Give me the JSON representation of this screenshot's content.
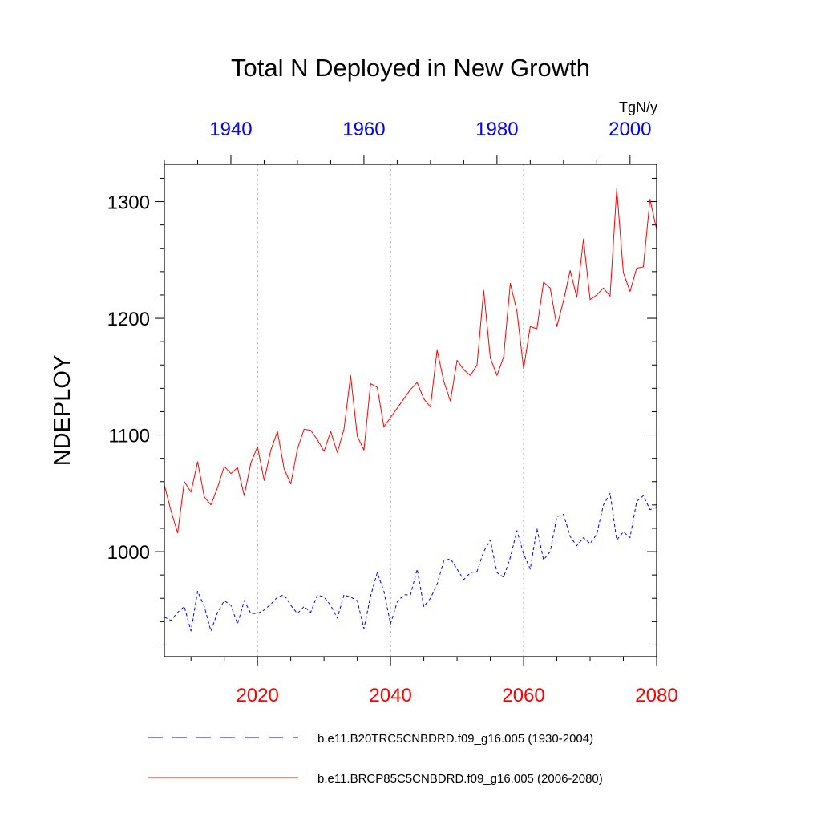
{
  "chart_data": {
    "type": "line",
    "title": "Total N Deployed in New Growth",
    "units": "TgN/y",
    "ylabel": "NDEPLOY",
    "ylim": [
      910,
      1332
    ],
    "yticks": [
      1000,
      1100,
      1200,
      1300
    ],
    "y_tick_labels": [
      "1000",
      "1100",
      "1200",
      "1300"
    ],
    "bottom_axis": {
      "range": [
        2006,
        2080
      ],
      "ticks": [
        2020,
        2040,
        2060,
        2080
      ],
      "tick_labels": [
        "2020",
        "2040",
        "2060",
        "2080"
      ],
      "color": "#ff0000"
    },
    "top_axis": {
      "range": [
        1930,
        2004
      ],
      "ticks": [
        1940,
        1960,
        1980,
        2000
      ],
      "tick_labels": [
        "1940",
        "1960",
        "1980",
        "2000"
      ],
      "color": "#0000ff"
    },
    "gridlines_x": [
      2020,
      2040,
      2060
    ],
    "series": [
      {
        "name": "b.e11.B20TRC5CNBDRD.f09_g16.005 (1930-2004)",
        "axis": "top",
        "color": "#0000ff",
        "style": "dashed",
        "x": [
          1930,
          1931,
          1932,
          1933,
          1934,
          1935,
          1936,
          1937,
          1938,
          1939,
          1940,
          1941,
          1942,
          1943,
          1944,
          1945,
          1946,
          1947,
          1948,
          1949,
          1950,
          1951,
          1952,
          1953,
          1954,
          1955,
          1956,
          1957,
          1958,
          1959,
          1960,
          1961,
          1962,
          1963,
          1964,
          1965,
          1966,
          1967,
          1968,
          1969,
          1970,
          1971,
          1972,
          1973,
          1974,
          1975,
          1976,
          1977,
          1978,
          1979,
          1980,
          1981,
          1982,
          1983,
          1984,
          1985,
          1986,
          1987,
          1988,
          1989,
          1990,
          1991,
          1992,
          1993,
          1994,
          1995,
          1996,
          1997,
          1998,
          1999,
          2000,
          2001,
          2002,
          2003,
          2004
        ],
        "values": [
          944,
          941,
          948,
          953,
          932,
          966,
          953,
          932,
          948,
          958,
          954,
          938,
          958,
          947,
          947,
          950,
          955,
          961,
          963,
          954,
          947,
          953,
          948,
          963,
          961,
          954,
          943,
          963,
          961,
          958,
          934,
          962,
          982,
          966,
          938,
          957,
          963,
          963,
          985,
          953,
          960,
          972,
          992,
          994,
          985,
          976,
          982,
          983,
          1000,
          1010,
          982,
          978,
          995,
          1018,
          998,
          985,
          1020,
          993,
          1000,
          1030,
          1032,
          1013,
          1005,
          1012,
          1007,
          1015,
          1040,
          1050,
          1010,
          1017,
          1012,
          1043,
          1048,
          1036,
          1038
        ]
      },
      {
        "name": "b.e11.BRCP85C5CNBDRD.f09_g16.005 (2006-2080)",
        "axis": "bottom",
        "color": "#ff0000",
        "style": "solid",
        "x": [
          2006,
          2007,
          2008,
          2009,
          2010,
          2011,
          2012,
          2013,
          2014,
          2015,
          2016,
          2017,
          2018,
          2019,
          2020,
          2021,
          2022,
          2023,
          2024,
          2025,
          2026,
          2027,
          2028,
          2029,
          2030,
          2031,
          2032,
          2033,
          2034,
          2035,
          2036,
          2037,
          2038,
          2039,
          2040,
          2041,
          2042,
          2043,
          2044,
          2045,
          2046,
          2047,
          2048,
          2049,
          2050,
          2051,
          2052,
          2053,
          2054,
          2055,
          2056,
          2057,
          2058,
          2059,
          2060,
          2061,
          2062,
          2063,
          2064,
          2065,
          2066,
          2067,
          2068,
          2069,
          2070,
          2071,
          2072,
          2073,
          2074,
          2075,
          2076,
          2077,
          2078,
          2079,
          2080
        ],
        "values": [
          1057,
          1035,
          1016,
          1060,
          1051,
          1077,
          1047,
          1040,
          1055,
          1073,
          1067,
          1072,
          1048,
          1076,
          1090,
          1061,
          1087,
          1103,
          1071,
          1058,
          1088,
          1105,
          1104,
          1096,
          1086,
          1103,
          1085,
          1105,
          1151,
          1099,
          1087,
          1144,
          1141,
          1107,
          1115,
          1123,
          1131,
          1139,
          1145,
          1131,
          1124,
          1173,
          1146,
          1129,
          1164,
          1156,
          1151,
          1160,
          1224,
          1166,
          1151,
          1167,
          1230,
          1206,
          1157,
          1193,
          1191,
          1231,
          1226,
          1193,
          1215,
          1241,
          1218,
          1268,
          1216,
          1220,
          1226,
          1219,
          1311,
          1239,
          1223,
          1243,
          1244,
          1302,
          1276
        ]
      }
    ],
    "legend": {
      "position": "bottom",
      "entries": [
        "b.e11.B20TRC5CNBDRD.f09_g16.005 (1930-2004)",
        "b.e11.BRCP85C5CNBDRD.f09_g16.005 (2006-2080)"
      ]
    }
  }
}
